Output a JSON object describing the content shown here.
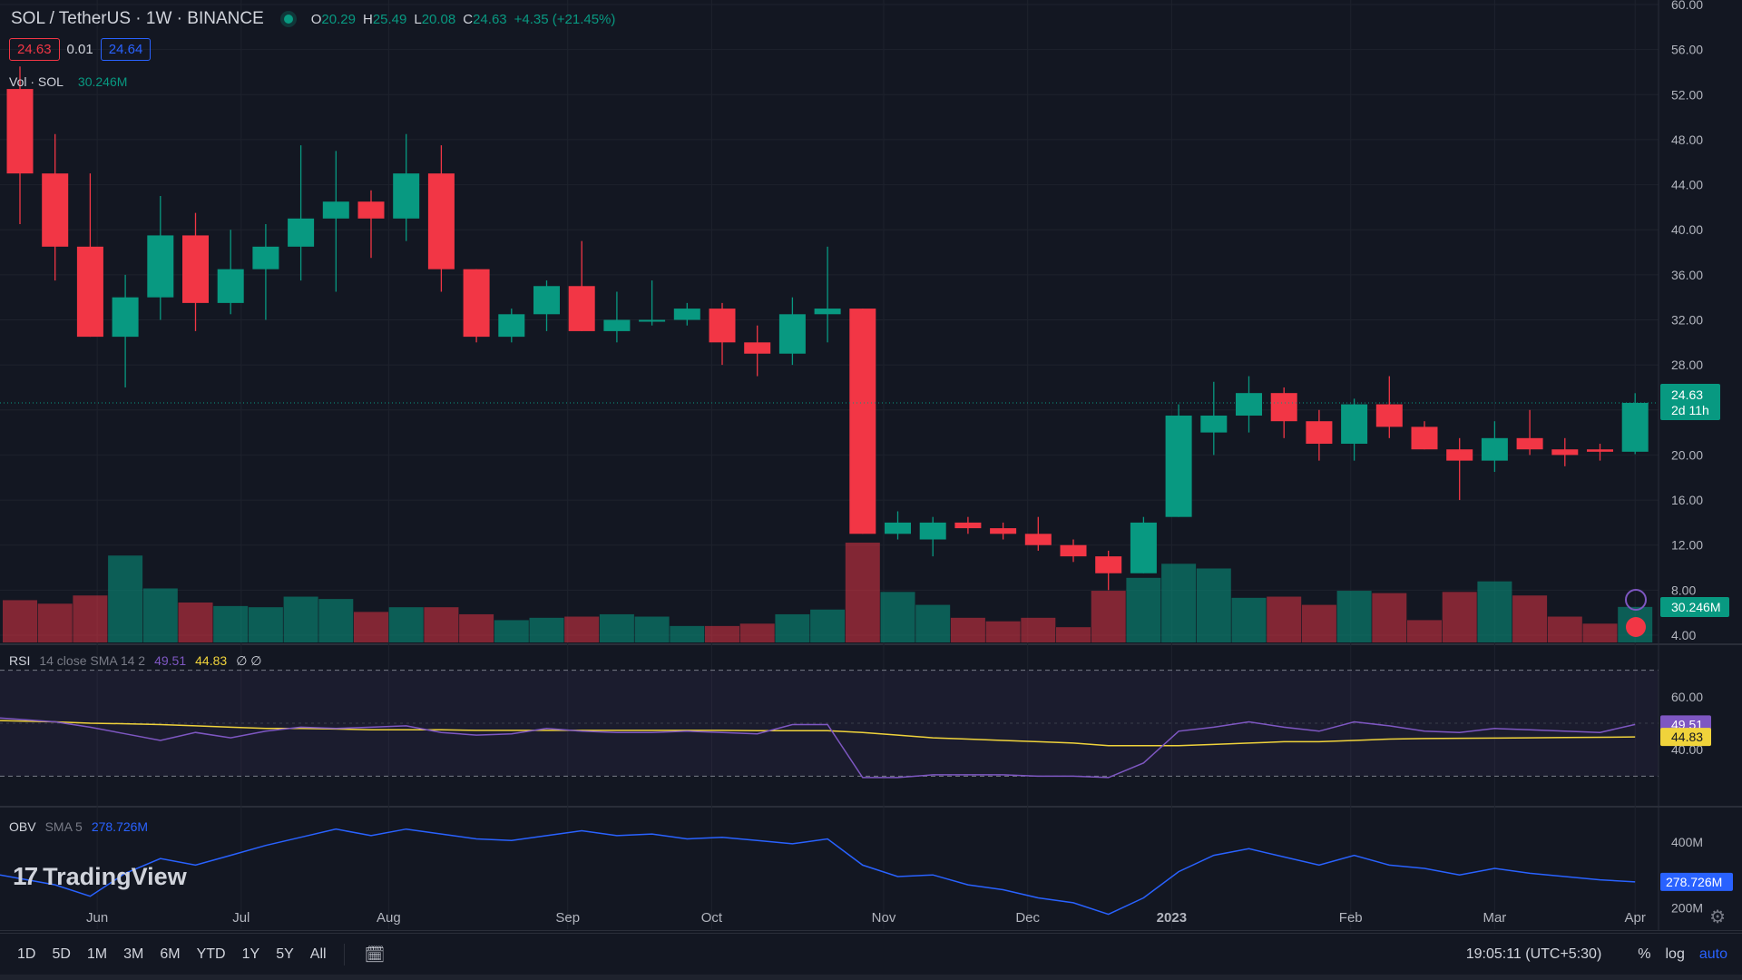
{
  "header": {
    "symbol": "SOL / TetherUS · 1W · BINANCE",
    "ohlc": {
      "o_label": "O",
      "o": "20.29",
      "h_label": "H",
      "h": "25.49",
      "l_label": "L",
      "l": "20.08",
      "c_label": "C",
      "c": "24.63",
      "change": "+4.35 (+21.45%)"
    },
    "bid": "24.63",
    "spread": "0.01",
    "ask": "24.64"
  },
  "volume_legend": {
    "label": "Vol · SOL",
    "value": "30.246M"
  },
  "rsi_legend": {
    "label": "RSI",
    "params": "14 close SMA 14 2",
    "rsi": "49.51",
    "sma": "44.83",
    "extra": "∅ ∅"
  },
  "obv_legend": {
    "label": "OBV",
    "params": "SMA 5",
    "value": "278.726M"
  },
  "logo": {
    "mark": "17",
    "text": "TradingView"
  },
  "price_axis": {
    "ticks": [
      "60.00",
      "56.00",
      "52.00",
      "48.00",
      "44.00",
      "40.00",
      "36.00",
      "32.00",
      "28.00",
      "24.00",
      "20.00",
      "16.00",
      "12.00",
      "8.00",
      "4.00"
    ],
    "last_price": "24.63",
    "countdown": "2d 11h",
    "volume_tag": "30.246M"
  },
  "rsi_axis": {
    "ticks": [
      "60.00",
      "40.00"
    ],
    "rsi_tag": "49.51",
    "sma_tag": "44.83"
  },
  "obv_axis": {
    "ticks": [
      "400M",
      "200M"
    ],
    "obv_tag": "278.726M"
  },
  "time_axis": [
    "Jun",
    "Jul",
    "Aug",
    "Sep",
    "Oct",
    "Nov",
    "Dec",
    "2023",
    "Feb",
    "Mar",
    "Apr"
  ],
  "toolbar": {
    "timeframes": [
      "1D",
      "5D",
      "1M",
      "3M",
      "6M",
      "YTD",
      "1Y",
      "5Y",
      "All"
    ],
    "clock": "19:05:11 (UTC+5:30)",
    "percent": "%",
    "log": "log",
    "auto": "auto"
  },
  "colors": {
    "up": "#089981",
    "down": "#f23645",
    "rsi": "#7e57c2",
    "rsi_sma": "#f0d33b",
    "obv": "#2962ff"
  },
  "chart_data": {
    "type": "candlestick",
    "timeframe": "1W",
    "ylim": [
      4,
      60
    ],
    "candles": [
      {
        "o": 52.5,
        "h": 54.5,
        "l": 40.5,
        "c": 45.0
      },
      {
        "o": 45.0,
        "h": 48.5,
        "l": 35.5,
        "c": 38.5
      },
      {
        "o": 38.5,
        "h": 45.0,
        "l": 30.5,
        "c": 30.5
      },
      {
        "o": 30.5,
        "h": 36.0,
        "l": 26.0,
        "c": 34.0
      },
      {
        "o": 34.0,
        "h": 43.0,
        "l": 32.0,
        "c": 39.5
      },
      {
        "o": 39.5,
        "h": 41.5,
        "l": 31.0,
        "c": 33.5
      },
      {
        "o": 33.5,
        "h": 40.0,
        "l": 32.5,
        "c": 36.5
      },
      {
        "o": 36.5,
        "h": 40.5,
        "l": 32.0,
        "c": 38.5
      },
      {
        "o": 38.5,
        "h": 47.5,
        "l": 35.5,
        "c": 41.0
      },
      {
        "o": 41.0,
        "h": 47.0,
        "l": 34.5,
        "c": 42.5
      },
      {
        "o": 42.5,
        "h": 43.5,
        "l": 37.5,
        "c": 41.0
      },
      {
        "o": 41.0,
        "h": 48.5,
        "l": 39.0,
        "c": 45.0
      },
      {
        "o": 45.0,
        "h": 47.5,
        "l": 34.5,
        "c": 36.5
      },
      {
        "o": 36.5,
        "h": 36.5,
        "l": 30.0,
        "c": 30.5
      },
      {
        "o": 30.5,
        "h": 33.0,
        "l": 30.0,
        "c": 32.5
      },
      {
        "o": 32.5,
        "h": 35.5,
        "l": 31.0,
        "c": 35.0
      },
      {
        "o": 35.0,
        "h": 39.0,
        "l": 31.0,
        "c": 31.0
      },
      {
        "o": 31.0,
        "h": 34.5,
        "l": 30.0,
        "c": 32.0
      },
      {
        "o": 32.0,
        "h": 35.5,
        "l": 31.5,
        "c": 32.0
      },
      {
        "o": 32.0,
        "h": 33.5,
        "l": 31.5,
        "c": 33.0
      },
      {
        "o": 33.0,
        "h": 33.5,
        "l": 28.0,
        "c": 30.0
      },
      {
        "o": 30.0,
        "h": 31.5,
        "l": 27.0,
        "c": 29.0
      },
      {
        "o": 29.0,
        "h": 34.0,
        "l": 28.0,
        "c": 32.5
      },
      {
        "o": 32.5,
        "h": 38.5,
        "l": 30.0,
        "c": 33.0
      },
      {
        "o": 33.0,
        "h": 33.0,
        "l": 13.0,
        "c": 13.0
      },
      {
        "o": 13.0,
        "h": 15.0,
        "l": 12.5,
        "c": 14.0
      },
      {
        "o": 12.5,
        "h": 14.5,
        "l": 11.0,
        "c": 14.0
      },
      {
        "o": 14.0,
        "h": 14.5,
        "l": 13.0,
        "c": 13.5
      },
      {
        "o": 13.5,
        "h": 14.0,
        "l": 12.5,
        "c": 13.0
      },
      {
        "o": 13.0,
        "h": 14.5,
        "l": 11.5,
        "c": 12.0
      },
      {
        "o": 12.0,
        "h": 12.5,
        "l": 10.5,
        "c": 11.0
      },
      {
        "o": 11.0,
        "h": 11.5,
        "l": 8.0,
        "c": 9.5
      },
      {
        "o": 9.5,
        "h": 14.5,
        "l": 9.5,
        "c": 14.0
      },
      {
        "o": 14.5,
        "h": 24.5,
        "l": 14.5,
        "c": 23.5
      },
      {
        "o": 22.0,
        "h": 26.5,
        "l": 20.0,
        "c": 23.5
      },
      {
        "o": 23.5,
        "h": 27.0,
        "l": 22.0,
        "c": 25.5
      },
      {
        "o": 25.5,
        "h": 26.0,
        "l": 21.5,
        "c": 23.0
      },
      {
        "o": 23.0,
        "h": 24.0,
        "l": 19.5,
        "c": 21.0
      },
      {
        "o": 21.0,
        "h": 25.0,
        "l": 19.5,
        "c": 24.5
      },
      {
        "o": 24.5,
        "h": 27.0,
        "l": 21.5,
        "c": 22.5
      },
      {
        "o": 22.5,
        "h": 23.0,
        "l": 20.5,
        "c": 20.5
      },
      {
        "o": 20.5,
        "h": 21.5,
        "l": 16.0,
        "c": 19.5
      },
      {
        "o": 19.5,
        "h": 23.0,
        "l": 18.5,
        "c": 21.5
      },
      {
        "o": 21.5,
        "h": 24.0,
        "l": 20.0,
        "c": 20.5
      },
      {
        "o": 20.5,
        "h": 21.5,
        "l": 19.0,
        "c": 20.0
      },
      {
        "o": 20.5,
        "h": 21.0,
        "l": 19.5,
        "c": 20.29
      },
      {
        "o": 20.29,
        "h": 25.49,
        "l": 20.08,
        "c": 24.63
      }
    ],
    "volume": [
      36,
      33,
      40,
      74,
      46,
      34,
      31,
      30,
      39,
      37,
      26,
      30,
      30,
      24,
      19,
      21,
      22,
      24,
      22,
      14,
      14,
      16,
      24,
      28,
      85,
      43,
      32,
      21,
      18,
      21,
      13,
      44,
      55,
      67,
      63,
      38,
      39,
      32,
      44,
      42,
      19,
      43,
      52,
      40,
      22,
      16,
      30.246
    ],
    "volume_unit": "M",
    "rsi": [
      52,
      50.5,
      48.5,
      46,
      43.5,
      46.5,
      44.5,
      47,
      48.5,
      48,
      48.5,
      49,
      46.5,
      45.5,
      46,
      48,
      47,
      46.5,
      46.5,
      47,
      46.5,
      46,
      49.5,
      49.5,
      29.5,
      29.5,
      30.5,
      30.5,
      30.5,
      30,
      30,
      29.5,
      35,
      47,
      48.5,
      50.5,
      48.5,
      47,
      50.5,
      49,
      47,
      46.5,
      48,
      47.5,
      47,
      46.5,
      49.51
    ],
    "rsi_sma": [
      51,
      50.5,
      50,
      49.8,
      49.5,
      49,
      48.5,
      48,
      48,
      47.8,
      47.5,
      47.5,
      47.5,
      47.3,
      47.3,
      47.3,
      47.3,
      47.3,
      47.3,
      47.3,
      47.3,
      47.2,
      47.2,
      47.2,
      46.5,
      45.5,
      44.5,
      44,
      43.5,
      43,
      42.5,
      41.5,
      41.5,
      41.5,
      42,
      42.5,
      43,
      43,
      43.5,
      44,
      44.2,
      44.3,
      44.4,
      44.5,
      44.6,
      44.7,
      44.83
    ],
    "rsi_ylim": [
      25,
      75
    ],
    "obv": [
      300,
      270,
      235,
      305,
      350,
      330,
      360,
      390,
      415,
      440,
      420,
      440,
      425,
      410,
      405,
      420,
      435,
      420,
      425,
      410,
      415,
      405,
      395,
      410,
      330,
      295,
      300,
      270,
      255,
      230,
      215,
      180,
      230,
      310,
      360,
      380,
      355,
      330,
      360,
      330,
      320,
      300,
      320,
      305,
      295,
      285,
      278.726
    ],
    "obv_ylim": [
      140,
      500
    ],
    "obv_unit": "M"
  }
}
